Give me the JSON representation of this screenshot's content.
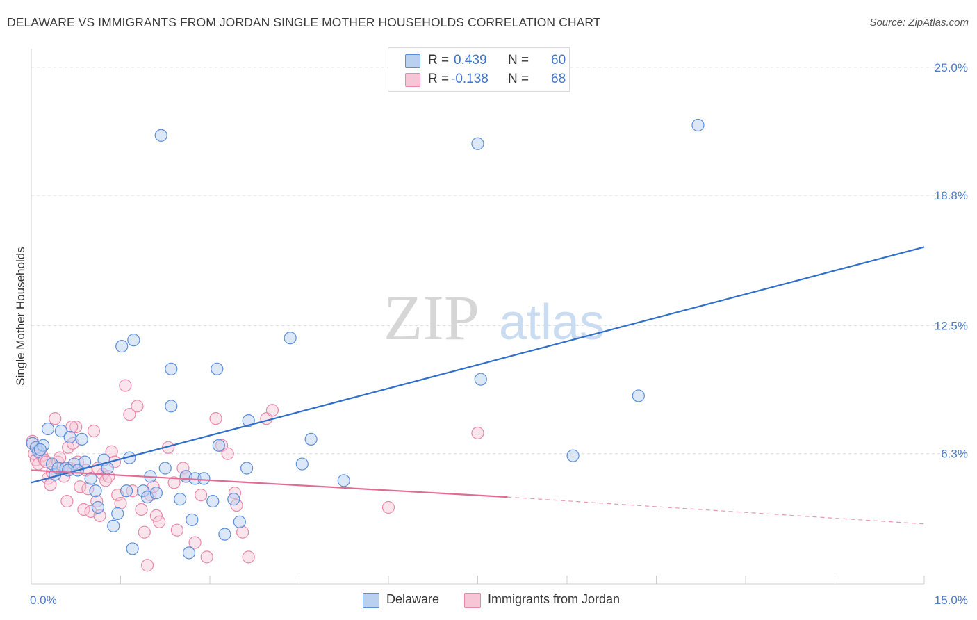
{
  "title": "DELAWARE VS IMMIGRANTS FROM JORDAN SINGLE MOTHER HOUSEHOLDS CORRELATION CHART",
  "source": "Source: ZipAtlas.com",
  "watermark": {
    "zip": "ZIP",
    "atlas": "atlas"
  },
  "colors": {
    "delaware": "#5b8fd9",
    "delaware_fill": "#b9d0f1",
    "delaware_line": "#2f6fca",
    "jordan": "#e889a8",
    "jordan_fill": "#f7c6d6",
    "jordan_line": "#e06b93",
    "tick_text": "#4a7cc7",
    "grid": "#dcdcdc"
  },
  "stats": [
    {
      "r_label": "R =",
      "r_value": "0.439",
      "n_label": "N =",
      "n_value": "60"
    },
    {
      "r_label": "R =",
      "r_value": "-0.138",
      "n_label": "N =",
      "n_value": "68"
    }
  ],
  "legend": [
    "Delaware",
    "Immigrants from Jordan"
  ],
  "chart_data": {
    "type": "scatter",
    "title": "DELAWARE VS IMMIGRANTS FROM JORDAN SINGLE MOTHER HOUSEHOLDS CORRELATION CHART",
    "xlabel": "",
    "ylabel": "Single Mother Households",
    "xlim": [
      0,
      15
    ],
    "ylim": [
      0,
      25.9
    ],
    "x_tick_labels": [
      "0.0%",
      "15.0%"
    ],
    "y_ticks": [
      6.3,
      12.5,
      18.8,
      25.0
    ],
    "y_tick_labels": [
      "6.3%",
      "12.5%",
      "18.8%",
      "25.0%"
    ],
    "grid": true,
    "legend_position": "bottom",
    "series": [
      {
        "name": "Delaware",
        "r": 0.439,
        "n": 60,
        "trend": {
          "x": [
            0,
            15
          ],
          "y": [
            4.9,
            16.3
          ]
        },
        "points": [
          [
            0.02,
            6.8
          ],
          [
            0.08,
            6.6
          ],
          [
            0.12,
            6.4
          ],
          [
            0.2,
            6.7
          ],
          [
            0.28,
            7.5
          ],
          [
            0.35,
            5.8
          ],
          [
            0.4,
            5.3
          ],
          [
            0.45,
            5.6
          ],
          [
            0.5,
            7.4
          ],
          [
            0.58,
            5.6
          ],
          [
            0.65,
            7.1
          ],
          [
            0.72,
            5.8
          ],
          [
            0.78,
            5.5
          ],
          [
            0.85,
            7.0
          ],
          [
            0.9,
            5.9
          ],
          [
            1.0,
            5.1
          ],
          [
            1.08,
            4.5
          ],
          [
            1.12,
            3.7
          ],
          [
            1.22,
            6.0
          ],
          [
            1.28,
            5.6
          ],
          [
            1.38,
            2.8
          ],
          [
            1.45,
            3.4
          ],
          [
            1.52,
            11.5
          ],
          [
            1.6,
            4.5
          ],
          [
            1.65,
            6.1
          ],
          [
            1.7,
            1.7
          ],
          [
            1.72,
            11.8
          ],
          [
            1.88,
            4.5
          ],
          [
            1.95,
            4.2
          ],
          [
            2.0,
            5.2
          ],
          [
            2.1,
            4.4
          ],
          [
            2.18,
            21.7
          ],
          [
            2.25,
            5.6
          ],
          [
            2.35,
            8.6
          ],
          [
            2.35,
            10.4
          ],
          [
            2.5,
            4.1
          ],
          [
            2.6,
            5.2
          ],
          [
            2.65,
            1.5
          ],
          [
            2.7,
            3.1
          ],
          [
            2.75,
            5.1
          ],
          [
            2.9,
            5.1
          ],
          [
            3.05,
            4.0
          ],
          [
            3.12,
            10.4
          ],
          [
            3.15,
            6.7
          ],
          [
            3.25,
            2.4
          ],
          [
            3.4,
            4.1
          ],
          [
            3.5,
            3.0
          ],
          [
            3.62,
            5.6
          ],
          [
            3.65,
            7.9
          ],
          [
            4.35,
            11.9
          ],
          [
            4.55,
            5.8
          ],
          [
            4.7,
            7.0
          ],
          [
            5.25,
            5.0
          ],
          [
            7.5,
            21.3
          ],
          [
            7.55,
            9.9
          ],
          [
            9.1,
            6.2
          ],
          [
            10.2,
            9.1
          ],
          [
            11.2,
            22.2
          ],
          [
            0.15,
            6.5
          ],
          [
            0.62,
            5.5
          ]
        ]
      },
      {
        "name": "Immigrants from Jordan",
        "r": -0.138,
        "n": 68,
        "trend": {
          "x": [
            0,
            8
          ],
          "y": [
            5.5,
            4.2
          ]
        },
        "trend_extension": {
          "x": [
            8,
            15
          ],
          "y": [
            4.2,
            2.9
          ]
        },
        "points": [
          [
            0.02,
            6.9
          ],
          [
            0.05,
            6.3
          ],
          [
            0.08,
            6.0
          ],
          [
            0.12,
            5.8
          ],
          [
            0.18,
            6.2
          ],
          [
            0.22,
            6.0
          ],
          [
            0.28,
            5.1
          ],
          [
            0.32,
            4.8
          ],
          [
            0.35,
            5.4
          ],
          [
            0.4,
            8.0
          ],
          [
            0.45,
            5.9
          ],
          [
            0.48,
            6.1
          ],
          [
            0.52,
            5.6
          ],
          [
            0.55,
            5.2
          ],
          [
            0.6,
            4.0
          ],
          [
            0.62,
            6.6
          ],
          [
            0.65,
            5.6
          ],
          [
            0.7,
            6.8
          ],
          [
            0.75,
            7.6
          ],
          [
            0.78,
            5.9
          ],
          [
            0.82,
            4.7
          ],
          [
            0.88,
            3.6
          ],
          [
            0.92,
            5.5
          ],
          [
            0.95,
            4.6
          ],
          [
            1.0,
            3.5
          ],
          [
            1.05,
            7.4
          ],
          [
            1.1,
            4.0
          ],
          [
            1.15,
            3.3
          ],
          [
            1.2,
            5.3
          ],
          [
            1.25,
            5.0
          ],
          [
            1.3,
            5.2
          ],
          [
            1.35,
            6.4
          ],
          [
            1.4,
            5.9
          ],
          [
            1.45,
            4.3
          ],
          [
            1.5,
            3.9
          ],
          [
            1.58,
            9.6
          ],
          [
            1.65,
            8.2
          ],
          [
            1.7,
            4.5
          ],
          [
            1.78,
            8.6
          ],
          [
            1.85,
            3.6
          ],
          [
            1.9,
            2.5
          ],
          [
            1.95,
            0.9
          ],
          [
            2.0,
            4.3
          ],
          [
            2.05,
            4.7
          ],
          [
            2.1,
            3.3
          ],
          [
            2.15,
            3.0
          ],
          [
            2.3,
            6.6
          ],
          [
            2.4,
            4.9
          ],
          [
            2.45,
            2.6
          ],
          [
            2.55,
            5.6
          ],
          [
            2.6,
            5.2
          ],
          [
            2.75,
            2.0
          ],
          [
            2.85,
            4.3
          ],
          [
            2.95,
            1.3
          ],
          [
            3.1,
            8.0
          ],
          [
            3.2,
            6.7
          ],
          [
            3.3,
            6.3
          ],
          [
            3.42,
            4.4
          ],
          [
            3.45,
            3.8
          ],
          [
            3.55,
            2.5
          ],
          [
            3.65,
            1.3
          ],
          [
            3.95,
            8.0
          ],
          [
            4.05,
            8.4
          ],
          [
            6.0,
            3.7
          ],
          [
            7.5,
            7.3
          ],
          [
            0.25,
            5.9
          ],
          [
            0.68,
            7.6
          ],
          [
            1.12,
            5.6
          ]
        ]
      }
    ]
  }
}
